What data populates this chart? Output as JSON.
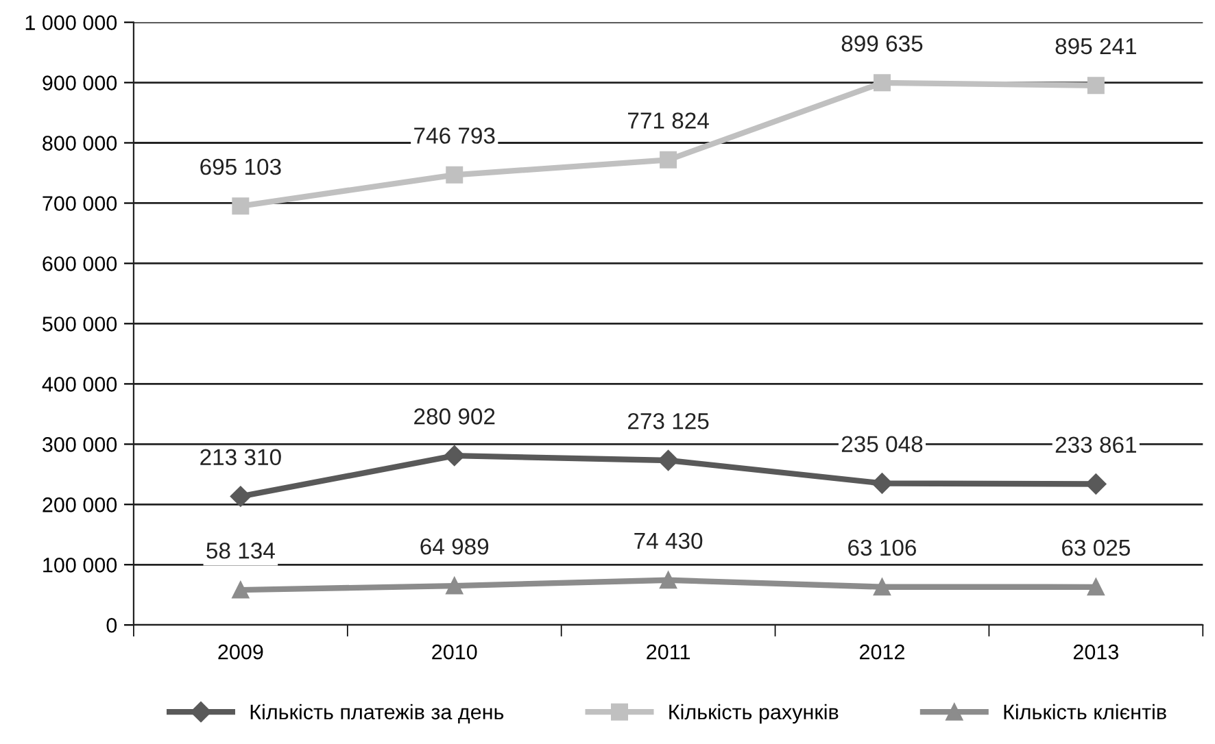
{
  "chart_data": {
    "type": "line",
    "categories": [
      "2009",
      "2010",
      "2011",
      "2012",
      "2013"
    ],
    "series": [
      {
        "name": "Кількість платежів за день",
        "color": "#595959",
        "marker": "diamond",
        "values": [
          213310,
          280902,
          273125,
          235048,
          233861
        ],
        "value_labels": [
          "213 310",
          "280 902",
          "273 125",
          "235 048",
          "233 861"
        ]
      },
      {
        "name": "Кількість рахунків",
        "color": "#c0c0c0",
        "marker": "square",
        "values": [
          695103,
          746793,
          771824,
          899635,
          895241
        ],
        "value_labels": [
          "695 103",
          "746 793",
          "771 824",
          "899 635",
          "895 241"
        ]
      },
      {
        "name": "Кількість клієнтів",
        "color": "#8c8c8c",
        "marker": "triangle",
        "values": [
          58134,
          64989,
          74430,
          63106,
          63025
        ],
        "value_labels": [
          "58 134",
          "64 989",
          "74 430",
          "63 106",
          "63 025"
        ]
      }
    ],
    "ylim": [
      0,
      1000000
    ],
    "yticks": [
      0,
      {
        "value": 100000,
        "label": "100 000"
      },
      {
        "value": 200000,
        "label": "200 000"
      },
      {
        "value": 300000,
        "label": "300 000"
      },
      {
        "value": 400000,
        "label": "400 000"
      },
      {
        "value": 500000,
        "label": "500 000"
      },
      {
        "value": 600000,
        "label": "600 000"
      },
      {
        "value": 700000,
        "label": "700 000"
      },
      {
        "value": 800000,
        "label": "800 000"
      },
      {
        "value": 900000,
        "label": "900 000"
      },
      {
        "value": 1000000,
        "label": "1 000 000"
      }
    ],
    "grid": "y",
    "legend": "bottom",
    "line_style": "solid"
  }
}
